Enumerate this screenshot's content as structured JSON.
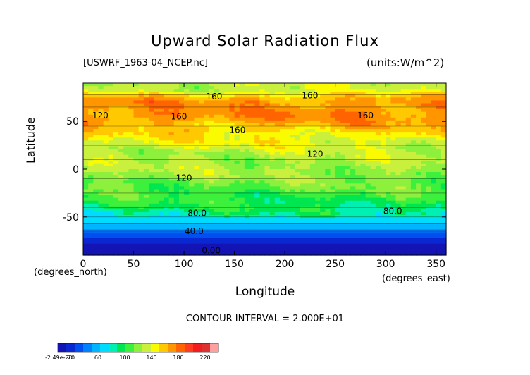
{
  "header": {
    "title": "Upward Solar Radiation Flux",
    "file_label": "[USWRF_1963-04_NCEP.nc]",
    "units_label": "(units:W/m^2)"
  },
  "footer": {
    "contour_interval": "CONTOUR INTERVAL = 2.000E+01"
  },
  "chart_data": {
    "type": "heatmap",
    "title": "Upward Solar Radiation Flux",
    "xlabel": "Longitude",
    "ylabel": "Latitude",
    "x_unit_label": "(degrees_east)",
    "y_unit_label": "(degrees_north)",
    "xlim": [
      0,
      360
    ],
    "ylim": [
      -90,
      90
    ],
    "x_ticks": [
      0,
      50,
      100,
      150,
      200,
      250,
      300,
      350
    ],
    "y_ticks": [
      -50,
      0,
      50
    ],
    "contour_interval": 20,
    "contour_labels": [
      {
        "text": "160",
        "lon": 130,
        "lat": 73
      },
      {
        "text": "160",
        "lon": 225,
        "lat": 74
      },
      {
        "text": "160",
        "lon": 95,
        "lat": 52
      },
      {
        "text": "160",
        "lon": 280,
        "lat": 53
      },
      {
        "text": "160",
        "lon": 153,
        "lat": 38
      },
      {
        "text": "120",
        "lon": 17,
        "lat": 53
      },
      {
        "text": "120",
        "lon": 230,
        "lat": 13
      },
      {
        "text": "120",
        "lon": 100,
        "lat": -12
      },
      {
        "text": "80.0",
        "lon": 113,
        "lat": -49
      },
      {
        "text": "80.0",
        "lon": 307,
        "lat": -47
      },
      {
        "text": "40.0",
        "lon": 110,
        "lat": -68
      },
      {
        "text": "0.00",
        "lon": 127,
        "lat": -88
      }
    ],
    "zonal_band_values": [
      {
        "lat_from": 90,
        "lat_to": 78,
        "value": 130
      },
      {
        "lat_from": 78,
        "lat_to": 65,
        "value": 170
      },
      {
        "lat_from": 65,
        "lat_to": 45,
        "value": 170
      },
      {
        "lat_from": 45,
        "lat_to": 25,
        "value": 145
      },
      {
        "lat_from": 25,
        "lat_to": 10,
        "value": 128
      },
      {
        "lat_from": 10,
        "lat_to": -10,
        "value": 125
      },
      {
        "lat_from": -10,
        "lat_to": -25,
        "value": 112
      },
      {
        "lat_from": -25,
        "lat_to": -40,
        "value": 100
      },
      {
        "lat_from": -40,
        "lat_to": -50,
        "value": 88
      },
      {
        "lat_from": -50,
        "lat_to": -57,
        "value": 72
      },
      {
        "lat_from": -57,
        "lat_to": -65,
        "value": 52
      },
      {
        "lat_from": -65,
        "lat_to": -72,
        "value": 30
      },
      {
        "lat_from": -72,
        "lat_to": -90,
        "value": 5
      }
    ],
    "colorbar": {
      "min_label": "-2.49e-20",
      "tick_labels": [
        "20",
        "60",
        "100",
        "140",
        "180",
        "220"
      ],
      "colors": [
        "#1414b4",
        "#0a28d2",
        "#0050f0",
        "#0082ff",
        "#00b4ff",
        "#00dcff",
        "#00f0b4",
        "#00e650",
        "#3cf03c",
        "#8cf03c",
        "#c8f03c",
        "#fafa00",
        "#ffc800",
        "#ff9600",
        "#ff6400",
        "#ff3c1e",
        "#f01e1e",
        "#dc3232",
        "#ffa0a0"
      ]
    }
  }
}
